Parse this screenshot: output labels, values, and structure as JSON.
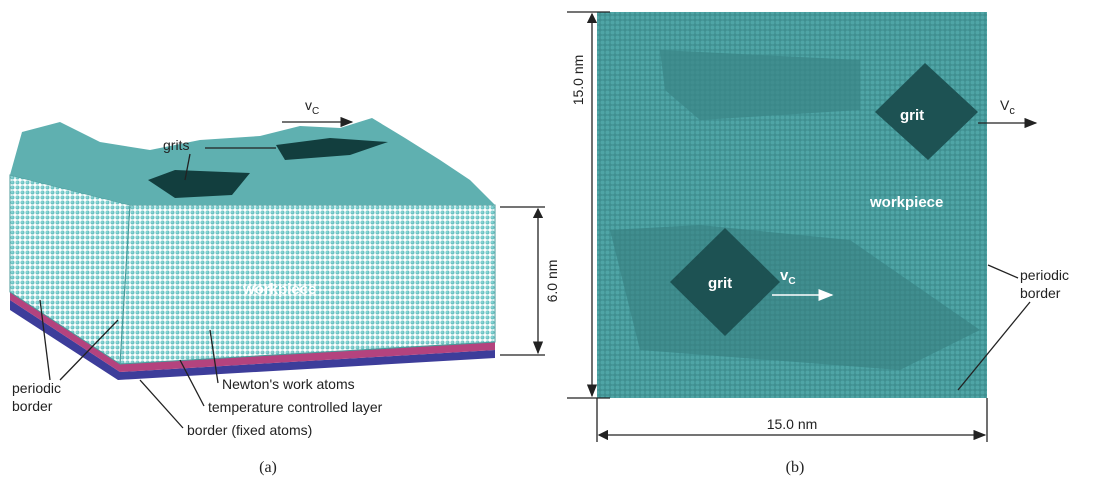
{
  "panel_a": {
    "caption": "(a)",
    "grits": "grits",
    "velocity": {
      "main": "v",
      "sub": "C"
    },
    "workpiece": "workpiece",
    "height": "6.0 nm",
    "periodic_border": [
      "periodic",
      "border"
    ],
    "newton_atoms": "Newton's work atoms",
    "temperature_layer": "temperature controlled layer",
    "fixed_border": "border (fixed atoms)"
  },
  "panel_b": {
    "caption": "(b)",
    "side": "15.0 nm",
    "velocity_top": {
      "main": "V",
      "sub": "c"
    },
    "grit_top": "grit",
    "workpiece": "workpiece",
    "grit_bottom": "grit",
    "velocity_bottom": {
      "main": "v",
      "sub": "C"
    },
    "periodic_border": [
      "periodic",
      "border"
    ],
    "width": "15.0 nm"
  }
}
